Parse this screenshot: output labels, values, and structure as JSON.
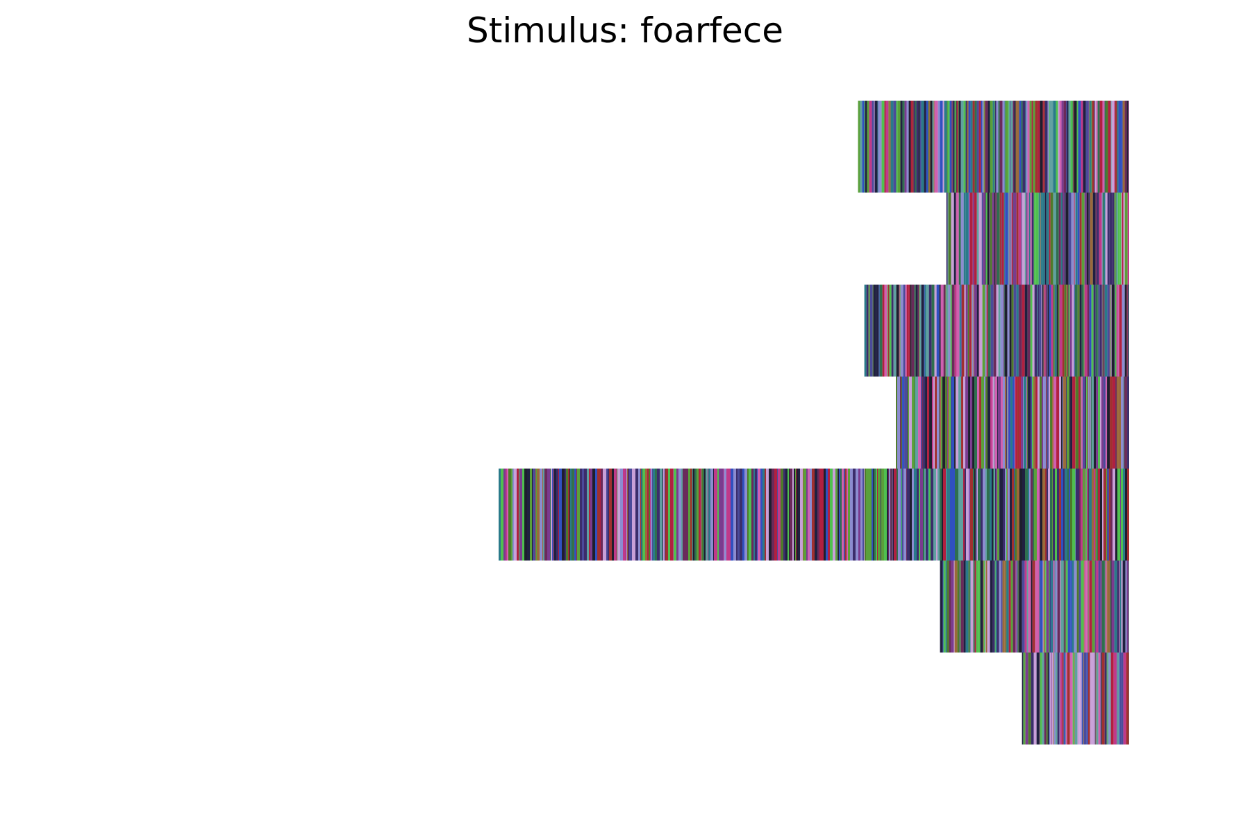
{
  "chart_data": {
    "type": "bar",
    "orientation": "horizontal",
    "title": "Stimulus: foarfece",
    "rows": [
      {
        "value": 0.43
      },
      {
        "value": 0.29
      },
      {
        "value": 0.42
      },
      {
        "value": 0.37
      },
      {
        "value": 1.0
      },
      {
        "value": 0.3
      },
      {
        "value": 0.17
      }
    ],
    "xlim": [
      0,
      1
    ],
    "alignment": "right",
    "axes_visible": false,
    "grid": false,
    "legend": "none",
    "stripe_palette": [
      "#3b2d6b",
      "#7a3b8f",
      "#2f6f4f",
      "#c0398a",
      "#4b4b9a",
      "#1e1e2e",
      "#5aa03a",
      "#8c8cd0",
      "#b02040",
      "#2a7a8a",
      "#9a6a3a",
      "#4e7a2a",
      "#d060b0",
      "#3050c0",
      "#6a2a5a",
      "#c8a0d8",
      "#202040",
      "#50c050",
      "#a03030",
      "#60a0a0"
    ]
  }
}
